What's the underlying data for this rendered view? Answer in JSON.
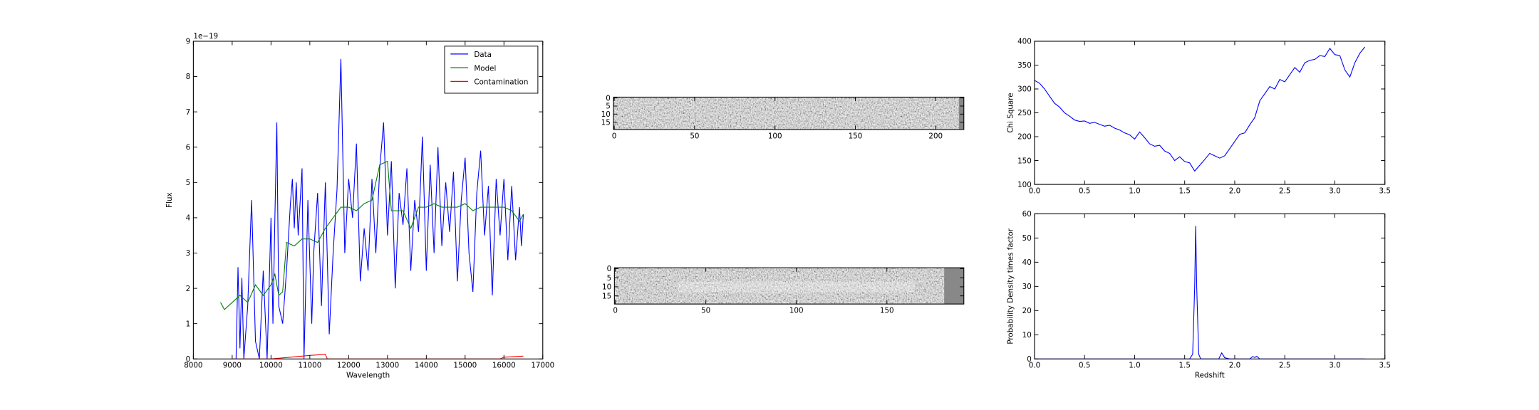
{
  "chart_data": [
    {
      "type": "line",
      "xlabel": "Wavelength",
      "ylabel": "Flux",
      "offset_text": "1e−19",
      "xlim": [
        8000,
        17000
      ],
      "xticks": [
        8000,
        9000,
        10000,
        11000,
        12000,
        13000,
        14000,
        15000,
        16000,
        17000
      ],
      "ylim": [
        0,
        9
      ],
      "yticks": [
        0,
        1,
        2,
        3,
        4,
        5,
        6,
        7,
        8,
        9
      ],
      "legend": "upper right",
      "series": [
        {
          "name": "Data",
          "color": "#0000ff",
          "x": [
            9100,
            9150,
            9200,
            9250,
            9300,
            9400,
            9500,
            9600,
            9700,
            9800,
            9900,
            10000,
            10050,
            10100,
            10150,
            10200,
            10300,
            10400,
            10500,
            10550,
            10600,
            10650,
            10700,
            10800,
            10850,
            10950,
            11050,
            11100,
            11200,
            11300,
            11400,
            11500,
            11600,
            11700,
            11800,
            11900,
            12000,
            12100,
            12200,
            12300,
            12400,
            12500,
            12600,
            12700,
            12800,
            12900,
            13000,
            13100,
            13200,
            13300,
            13400,
            13500,
            13600,
            13700,
            13800,
            13900,
            14000,
            14100,
            14200,
            14300,
            14400,
            14500,
            14600,
            14700,
            14800,
            14900,
            15000,
            15100,
            15200,
            15300,
            15400,
            15500,
            15600,
            15700,
            15800,
            15900,
            16000,
            16100,
            16200,
            16300,
            16400,
            16450,
            16500
          ],
          "values": [
            0,
            2.6,
            0.3,
            2.3,
            0,
            1.5,
            4.5,
            0.5,
            0,
            2.5,
            0,
            4,
            1,
            4,
            6.7,
            1.5,
            1,
            2.5,
            4.4,
            5.1,
            3.7,
            5,
            3.5,
            5.4,
            0,
            4.5,
            1,
            3,
            4.7,
            1.5,
            5,
            0.7,
            3,
            4.8,
            8.5,
            3,
            5.1,
            4,
            6.1,
            2.2,
            3.7,
            2.5,
            5.1,
            3,
            5.4,
            6.7,
            3.5,
            5.6,
            2,
            4.7,
            3.8,
            5.4,
            2.5,
            4.5,
            3.6,
            6.3,
            2.5,
            5.5,
            3,
            6,
            3.2,
            5,
            3.6,
            5.3,
            2.2,
            4.5,
            5.7,
            3,
            1.9,
            4.7,
            5.9,
            3.5,
            4.9,
            1.8,
            5.1,
            3.5,
            5.1,
            2.8,
            4.9,
            2.8,
            4.3,
            3.2,
            4.1
          ]
        },
        {
          "name": "Model",
          "color": "#008000",
          "x": [
            8700,
            8800,
            9000,
            9200,
            9400,
            9600,
            9800,
            10000,
            10100,
            10200,
            10300,
            10400,
            10600,
            10800,
            11000,
            11200,
            11400,
            11600,
            11800,
            12000,
            12200,
            12400,
            12600,
            12800,
            13000,
            13100,
            13400,
            13600,
            13800,
            14000,
            14200,
            14400,
            14600,
            14800,
            15000,
            15200,
            15400,
            15600,
            15800,
            16000,
            16200,
            16400,
            16500
          ],
          "values": [
            1.6,
            1.4,
            1.6,
            1.8,
            1.6,
            2.1,
            1.8,
            2.1,
            2.4,
            1.8,
            1.9,
            3.3,
            3.2,
            3.4,
            3.4,
            3.3,
            3.7,
            4.0,
            4.3,
            4.3,
            4.2,
            4.4,
            4.5,
            5.5,
            5.6,
            4.2,
            4.2,
            3.7,
            4.3,
            4.3,
            4.4,
            4.3,
            4.3,
            4.3,
            4.4,
            4.2,
            4.3,
            4.3,
            4.3,
            4.3,
            4.2,
            3.9,
            4.1
          ]
        },
        {
          "name": "Contamination",
          "color": "#ff0000",
          "x": [
            9000,
            10000,
            10500,
            11000,
            11400,
            11450,
            12000,
            14000,
            15900,
            16000,
            16500
          ],
          "values": [
            0,
            0,
            0.05,
            0.1,
            0.13,
            0,
            0,
            0,
            0,
            0.05,
            0.08
          ]
        }
      ]
    },
    {
      "type": "image",
      "xlim": [
        -0.5,
        217.5
      ],
      "xticks": [
        0,
        50,
        100,
        150,
        200
      ],
      "ylim": [
        19.5,
        -0.5
      ],
      "yticks": [
        0,
        5,
        10,
        15
      ]
    },
    {
      "type": "image",
      "xlim": [
        -0.5,
        192.5
      ],
      "xticks": [
        0,
        50,
        100,
        150
      ],
      "ylim": [
        19.5,
        -0.5
      ],
      "yticks": [
        0,
        5,
        10,
        15
      ]
    },
    {
      "type": "line",
      "ylabel": "Chi Square",
      "xlim": [
        0,
        3.5
      ],
      "xticks": [
        {
          "value": 0,
          "label": "0.0"
        },
        0.5,
        {
          "value": 1,
          "label": "1.0"
        },
        1.5,
        {
          "value": 2,
          "label": "2.0"
        },
        2.5,
        {
          "value": 3,
          "label": "3.0"
        },
        3.5
      ],
      "ylim": [
        100,
        400
      ],
      "yticks": [
        100,
        150,
        200,
        250,
        300,
        350,
        400
      ],
      "series": [
        {
          "color": "#0000ff",
          "x": [
            0,
            0.05,
            0.1,
            0.15,
            0.2,
            0.25,
            0.3,
            0.35,
            0.4,
            0.45,
            0.5,
            0.55,
            0.6,
            0.65,
            0.7,
            0.75,
            0.8,
            0.85,
            0.9,
            0.95,
            1.0,
            1.05,
            1.1,
            1.15,
            1.2,
            1.25,
            1.3,
            1.35,
            1.4,
            1.45,
            1.5,
            1.55,
            1.6,
            1.65,
            1.7,
            1.75,
            1.8,
            1.85,
            1.9,
            1.95,
            2.0,
            2.05,
            2.1,
            2.15,
            2.2,
            2.25,
            2.3,
            2.35,
            2.4,
            2.45,
            2.5,
            2.55,
            2.6,
            2.65,
            2.7,
            2.75,
            2.8,
            2.85,
            2.9,
            2.95,
            3.0,
            3.05,
            3.1,
            3.15,
            3.2,
            3.25,
            3.3
          ],
          "values": [
            318,
            312,
            300,
            285,
            270,
            262,
            250,
            243,
            235,
            232,
            233,
            228,
            230,
            226,
            222,
            224,
            218,
            214,
            208,
            204,
            195,
            210,
            198,
            185,
            180,
            182,
            170,
            165,
            150,
            158,
            148,
            145,
            128,
            140,
            152,
            165,
            160,
            155,
            160,
            175,
            190,
            205,
            208,
            225,
            240,
            275,
            290,
            305,
            300,
            320,
            315,
            330,
            345,
            335,
            355,
            360,
            362,
            370,
            368,
            385,
            372,
            370,
            340,
            325,
            355,
            375,
            388
          ]
        }
      ]
    },
    {
      "type": "line",
      "xlabel": "Redshift",
      "ylabel": "Probability Density times factor",
      "xlim": [
        0,
        3.5
      ],
      "xticks": [
        {
          "value": 0,
          "label": "0.0"
        },
        0.5,
        {
          "value": 1,
          "label": "1.0"
        },
        1.5,
        {
          "value": 2,
          "label": "2.0"
        },
        2.5,
        {
          "value": 3,
          "label": "3.0"
        },
        3.5
      ],
      "ylim": [
        0,
        60
      ],
      "yticks": [
        0,
        10,
        20,
        30,
        40,
        50,
        60
      ],
      "series": [
        {
          "color": "#0000ff",
          "x": [
            0,
            1.55,
            1.58,
            1.6,
            1.61,
            1.62,
            1.64,
            1.66,
            1.84,
            1.87,
            1.9,
            1.95,
            2.15,
            2.18,
            2.2,
            2.22,
            2.25,
            3.3
          ],
          "values": [
            0,
            0,
            2,
            30,
            55,
            30,
            2,
            0,
            0,
            2.5,
            0.5,
            0,
            0,
            1,
            0.6,
            1.1,
            0,
            0
          ]
        }
      ]
    }
  ]
}
